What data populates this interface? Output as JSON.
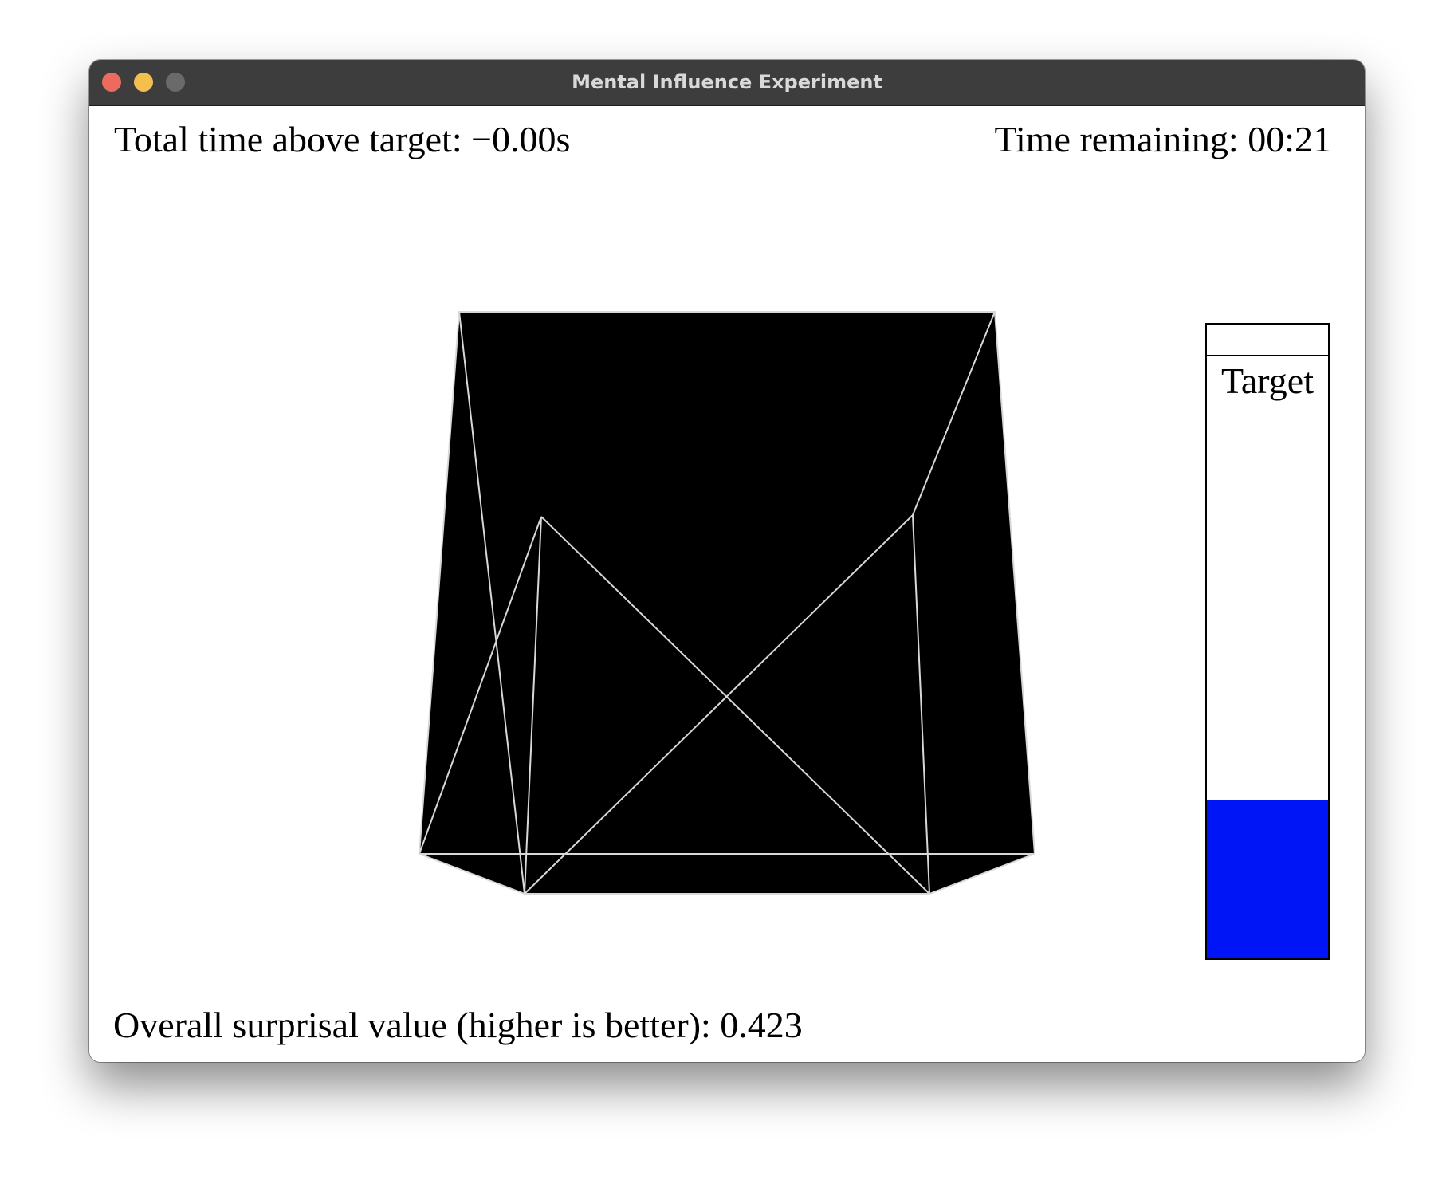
{
  "window": {
    "title": "Mental Influence Experiment"
  },
  "stats": {
    "time_above_target": "Total time above target: −0.00s",
    "time_remaining": "Time remaining: 00:21",
    "surprisal": "Overall surprisal value (higher is better): 0.423"
  },
  "meter": {
    "target_label": "Target",
    "level_fraction": 0.25,
    "fill_color": "#0015f5"
  },
  "colors": {
    "shape_fill": "#000000",
    "shape_edges": "#d8d8d8",
    "close": "#ed6a5e",
    "minimize": "#f5bf4f",
    "maximize": "#6a6a6a"
  }
}
